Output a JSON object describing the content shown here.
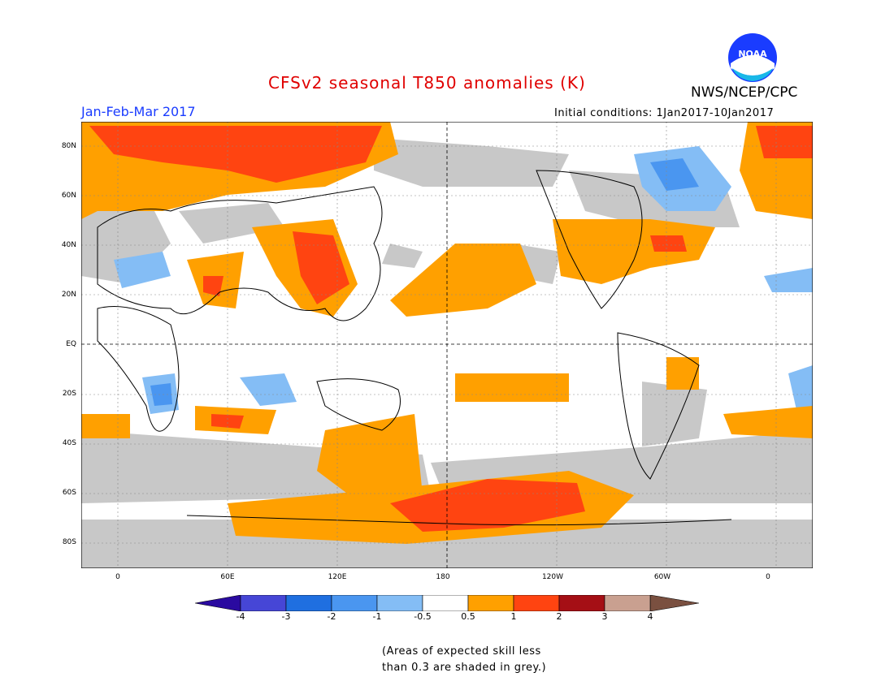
{
  "header": {
    "title": "CFSv2 seasonal T850 anomalies (K)",
    "period": "Jan-Feb-Mar 2017",
    "initial_conditions": "Initial conditions: 1Jan2017-10Jan2017",
    "organization": "NWS/NCEP/CPC",
    "logo_text": "NOAA"
  },
  "map": {
    "y_axis_labels": [
      "80N",
      "60N",
      "40N",
      "20N",
      "EQ",
      "20S",
      "40S",
      "60S",
      "80S"
    ],
    "x_axis_labels": [
      "0",
      "60E",
      "120E",
      "180",
      "120W",
      "60W",
      "0"
    ],
    "lat_range": [
      -90,
      90
    ],
    "lon_range": [
      -20,
      380
    ]
  },
  "colorbar": {
    "labels": [
      "-4",
      "-3",
      "-2",
      "-1",
      "-0.5",
      "0.5",
      "1",
      "2",
      "3",
      "4"
    ],
    "colors": [
      "#2a0aa0",
      "#4646d6",
      "#1f6fe0",
      "#4a96f0",
      "#84bdf5",
      "#ffffff",
      "#ffa000",
      "#ff4411",
      "#a50f15",
      "#c9a090",
      "#7a5040"
    ],
    "skill_mask_color": "#c8c8c8"
  },
  "note": {
    "line1": "(Areas of expected skill less",
    "line2": "than 0.3 are shaded in grey.)"
  }
}
